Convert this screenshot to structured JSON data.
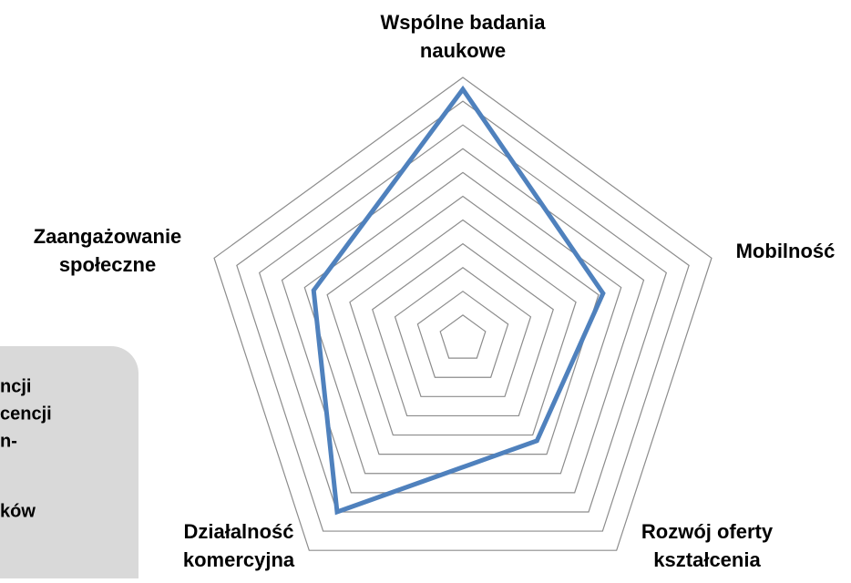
{
  "chart_data": {
    "type": "radar",
    "categories": [
      [
        "Wspólne badania",
        "naukowe"
      ],
      [
        "Mobilność"
      ],
      [
        "Rozwój oferty",
        "kształcenia"
      ],
      [
        "Działalność",
        "komercyjna"
      ],
      [
        "Zaangażowanie",
        "społeczne"
      ]
    ],
    "series": [
      {
        "color": "#4f81bd",
        "values": [
          10.5,
          6.2,
          5.3,
          9.0,
          6.6
        ]
      }
    ],
    "ylim": [
      0,
      11
    ],
    "yticks": [
      1,
      2,
      3,
      4,
      5,
      6,
      7,
      8,
      9,
      10,
      11
    ],
    "grid": true,
    "grid_color": "#8c8c8c"
  },
  "side_panel": {
    "lines": [
      "ncji",
      "cencji",
      "n-",
      "ków"
    ]
  }
}
